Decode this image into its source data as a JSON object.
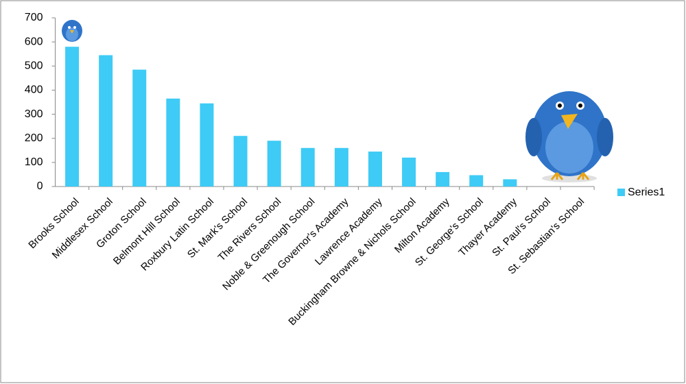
{
  "chart_data": {
    "type": "bar",
    "categories": [
      "Brooks School",
      "Middlesex School",
      "Groton School",
      "Belmont Hill School",
      "Roxbury Latin School",
      "St. Mark's School",
      "The Rivers School",
      "Noble & Greenough School",
      "The Governor's Academy",
      "Lawrence Academy",
      "Buckingham Browne & Nichols School",
      "Milton Academy",
      "St. George's School",
      "Thayer Academy",
      "St. Paul's School",
      "St. Sebastian's School"
    ],
    "series": [
      {
        "name": "Series1",
        "color": "#3ecbf5",
        "values": [
          580,
          545,
          485,
          365,
          345,
          210,
          190,
          160,
          160,
          145,
          120,
          60,
          47,
          30,
          0,
          0
        ]
      }
    ],
    "ylim": [
      0,
      700
    ],
    "yticks": [
      0,
      100,
      200,
      300,
      400,
      500,
      600,
      700
    ],
    "legend": "right"
  }
}
